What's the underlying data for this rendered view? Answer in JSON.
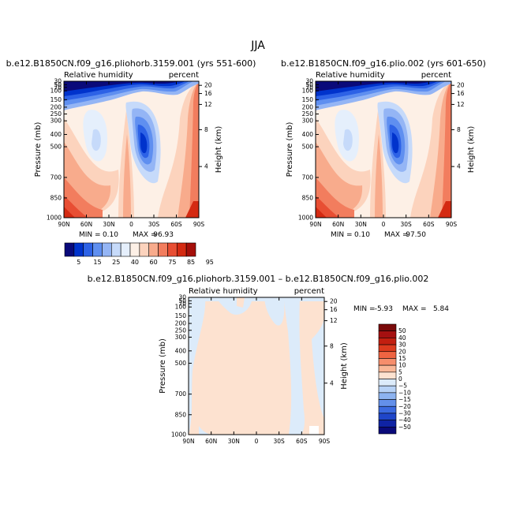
{
  "figure": {
    "title": "JJA"
  },
  "chart_data": [
    {
      "type": "heatmap",
      "title": "b.e12.B1850CN.f09_g16.pliohorb.3159.001 (yrs 551-600)",
      "variable": "Relative humidity",
      "units": "percent",
      "xlabel": "",
      "ylabel": "Pressure (mb)",
      "y2label": "Height (km)",
      "x_ticks": [
        "90N",
        "60N",
        "30N",
        "0",
        "30S",
        "60S",
        "90S"
      ],
      "y_ticks": [
        "30",
        "50",
        "70",
        "100",
        "150",
        "200",
        "250",
        "300",
        "400",
        "500",
        "700",
        "850",
        "1000"
      ],
      "y2_ticks": [
        "20",
        "16",
        "12",
        "8",
        "4"
      ],
      "stats": {
        "min_label": "MIN =",
        "min": "0.10",
        "max_label": "MAX =",
        "max": "96.93"
      },
      "color_levels": [
        "5",
        "15",
        "25",
        "40",
        "60",
        "75",
        "85",
        "95"
      ],
      "colors": [
        "#0a0a7a",
        "#0033cc",
        "#2d62e6",
        "#5f8ff0",
        "#94b5f5",
        "#c6dafa",
        "#e5effc",
        "#fdf0e6",
        "#fcd3bd",
        "#f8ab8c",
        "#f27d5e",
        "#e84e33",
        "#d42a12",
        "#a50f0a"
      ],
      "pattern": "dry upper troposphere; dry core near 20S 400-500mb; moist tropics and high latitudes"
    },
    {
      "type": "heatmap",
      "title": "b.e12.B1850CN.f09_g16.plio.002 (yrs 601-650)",
      "variable": "Relative humidity",
      "units": "percent",
      "xlabel": "",
      "ylabel": "Pressure (mb)",
      "y2label": "Height (km)",
      "x_ticks": [
        "90N",
        "60N",
        "30N",
        "0",
        "30S",
        "60S",
        "90S"
      ],
      "y_ticks": [
        "30",
        "50",
        "70",
        "100",
        "150",
        "200",
        "250",
        "300",
        "400",
        "500",
        "700",
        "850",
        "1000"
      ],
      "y2_ticks": [
        "20",
        "16",
        "12",
        "8",
        "4"
      ],
      "stats": {
        "min_label": "MIN =",
        "min": "0.10",
        "max_label": "MAX =",
        "max": "97.50"
      },
      "pattern": "same as first panel"
    },
    {
      "type": "heatmap",
      "title": "b.e12.B1850CN.f09_g16.pliohorb.3159.001 – b.e12.B1850CN.f09_g16.plio.002",
      "variable": "Relative humidity",
      "units": "percent",
      "xlabel": "",
      "ylabel": "Pressure (mb)",
      "y2label": "Height (km)",
      "x_ticks": [
        "90N",
        "60N",
        "30N",
        "0",
        "30S",
        "60S",
        "90S"
      ],
      "y_ticks": [
        "30",
        "50",
        "70",
        "100",
        "150",
        "200",
        "250",
        "300",
        "400",
        "500",
        "700",
        "850",
        "1000"
      ],
      "y2_ticks": [
        "20",
        "16",
        "12",
        "8",
        "4"
      ],
      "stats": {
        "min_label": "MIN =",
        "min": "-5.93",
        "max_label": "MAX =",
        "max": "5.84"
      },
      "color_levels": [
        "50",
        "40",
        "30",
        "20",
        "15",
        "10",
        "5",
        "0",
        "−5",
        "−10",
        "−15",
        "−20",
        "−30",
        "−40",
        "−50"
      ],
      "colors": [
        "#7a0a0a",
        "#a51010",
        "#c21f10",
        "#dc3b1e",
        "#ee6442",
        "#f68e6c",
        "#f9b797",
        "#fde2d0",
        "#dcebfa",
        "#b7d2f6",
        "#8db3f0",
        "#6390ea",
        "#3b6ae0",
        "#1f46c9",
        "#0f23a4",
        "#0a0a7a"
      ],
      "pattern": "mostly between -5 and 5"
    }
  ]
}
